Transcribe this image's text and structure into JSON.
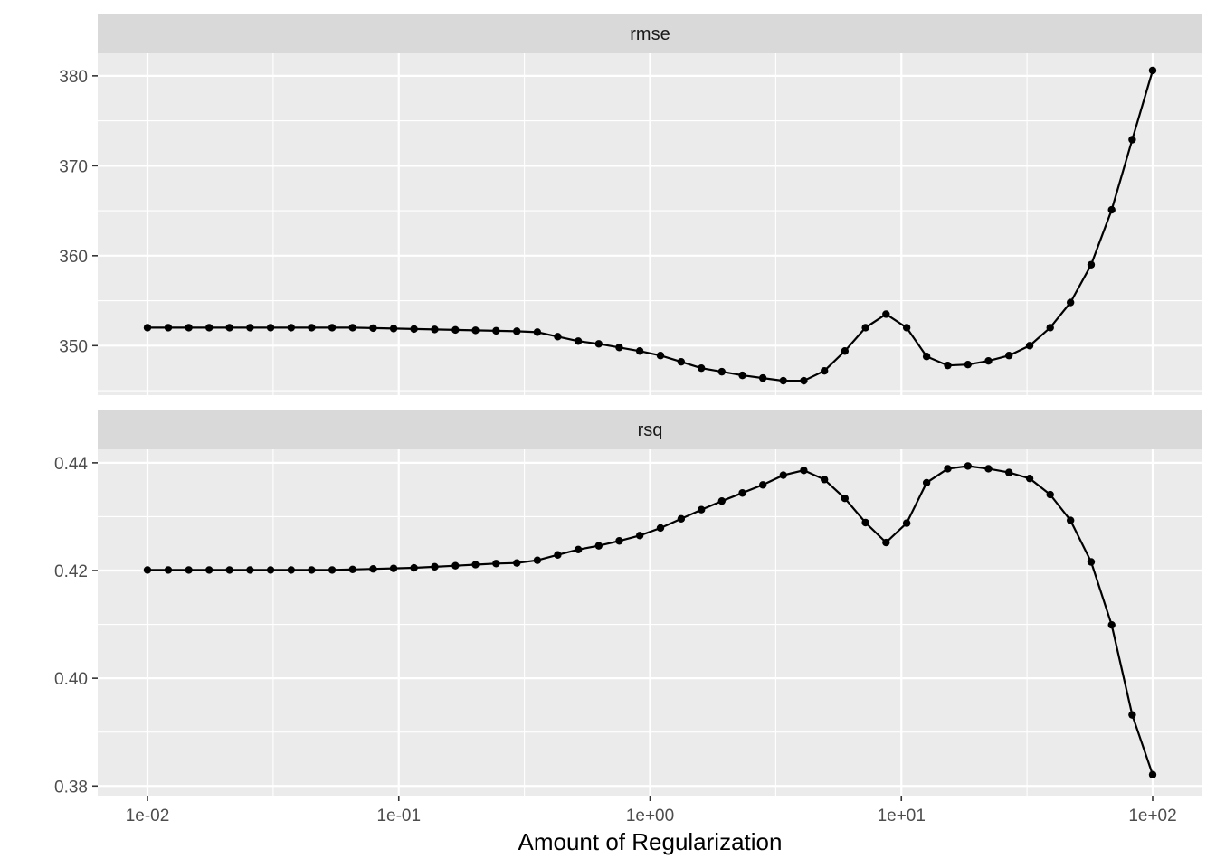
{
  "chart_data": {
    "type": "line",
    "xlabel": "Amount of Regularization",
    "x_scale": "log10",
    "x_ticks": [
      "1e-02",
      "1e-01",
      "1e+00",
      "1e+01",
      "1e+02"
    ],
    "x": [
      0.01,
      0.0121,
      0.0146,
      0.0176,
      0.0212,
      0.0256,
      0.0309,
      0.0373,
      0.045,
      0.0543,
      0.0655,
      0.0791,
      0.0954,
      0.115,
      0.139,
      0.168,
      0.202,
      0.244,
      0.295,
      0.356,
      0.429,
      0.518,
      0.625,
      0.754,
      0.91,
      1.1,
      1.33,
      1.6,
      1.93,
      2.33,
      2.81,
      3.39,
      4.09,
      4.94,
      5.96,
      7.2,
      8.69,
      10.5,
      12.6,
      15.3,
      18.4,
      22.2,
      26.8,
      32.4,
      39.1,
      47.1,
      56.9,
      68.7,
      82.9,
      100
    ],
    "facets": [
      {
        "strip": "rmse",
        "ylim": [
          344.5,
          382.5
        ],
        "y_ticks": [
          350,
          360,
          370,
          380
        ],
        "y_tick_labels": [
          "350",
          "360",
          "370",
          "380"
        ],
        "values": [
          352.0,
          352.0,
          352.0,
          352.0,
          352.0,
          352.0,
          352.0,
          352.0,
          352.0,
          352.0,
          352.0,
          351.95,
          351.9,
          351.85,
          351.8,
          351.75,
          351.7,
          351.65,
          351.6,
          351.5,
          351.0,
          350.5,
          350.2,
          349.8,
          349.4,
          348.9,
          348.2,
          347.5,
          347.1,
          346.7,
          346.4,
          346.1,
          346.1,
          347.2,
          349.4,
          352.0,
          353.5,
          352.0,
          348.8,
          347.8,
          347.9,
          348.3,
          348.9,
          350.0,
          352.0,
          354.8,
          359.0,
          365.1,
          372.9,
          380.6
        ]
      },
      {
        "strip": "rsq",
        "ylim": [
          0.3782,
          0.4425
        ],
        "y_ticks": [
          0.38,
          0.4,
          0.42,
          0.44
        ],
        "y_tick_labels": [
          "0.38",
          "0.40",
          "0.42",
          "0.44"
        ],
        "values": [
          0.4201,
          0.4201,
          0.4201,
          0.4201,
          0.4201,
          0.4201,
          0.4201,
          0.4201,
          0.4201,
          0.4201,
          0.4202,
          0.4203,
          0.4204,
          0.4205,
          0.4207,
          0.4209,
          0.4211,
          0.4213,
          0.4214,
          0.4219,
          0.4229,
          0.4239,
          0.4246,
          0.4255,
          0.4265,
          0.4279,
          0.4296,
          0.4313,
          0.4329,
          0.4344,
          0.4359,
          0.4377,
          0.4386,
          0.4369,
          0.4334,
          0.4289,
          0.4252,
          0.4288,
          0.4363,
          0.4389,
          0.4394,
          0.4389,
          0.4382,
          0.4371,
          0.4341,
          0.4293,
          0.4216,
          0.4099,
          0.3932,
          0.3821
        ]
      }
    ]
  }
}
